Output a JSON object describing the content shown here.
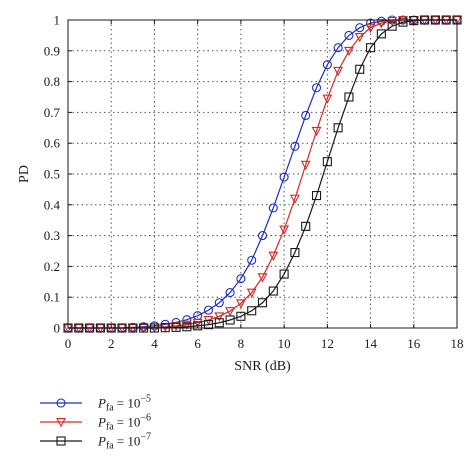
{
  "chart_data": {
    "type": "line",
    "xlabel": "SNR (dB)",
    "ylabel": "PD",
    "xlim": [
      0,
      18
    ],
    "ylim": [
      0,
      1
    ],
    "xticks": [
      "0",
      "2",
      "4",
      "6",
      "8",
      "10",
      "12",
      "14",
      "16",
      "18"
    ],
    "yticks": [
      "0",
      "0.1",
      "0.2",
      "0.3",
      "0.4",
      "0.5",
      "0.6",
      "0.7",
      "0.8",
      "0.9",
      "1"
    ],
    "grid": true,
    "legend_position": "below-left",
    "x": [
      0,
      0.5,
      1,
      1.5,
      2,
      2.5,
      3,
      3.5,
      4,
      4.5,
      5,
      5.5,
      6,
      6.5,
      7,
      7.5,
      8,
      8.5,
      9,
      9.5,
      10,
      10.5,
      11,
      11.5,
      12,
      12.5,
      13,
      13.5,
      14,
      14.5,
      15,
      15.5,
      16,
      16.5,
      17,
      17.5,
      18
    ],
    "series": [
      {
        "name": "P_fa = 10^-5",
        "legend_main": "P",
        "legend_sub": "fa",
        "legend_eq": "= 10",
        "legend_exp": "−5",
        "color": "#1f2fbf",
        "marker": "circle",
        "values": [
          0.0,
          0.0,
          0.0,
          0.0,
          0.0,
          0.0,
          0.002,
          0.004,
          0.007,
          0.012,
          0.018,
          0.027,
          0.04,
          0.058,
          0.082,
          0.115,
          0.16,
          0.22,
          0.3,
          0.39,
          0.49,
          0.59,
          0.69,
          0.78,
          0.855,
          0.91,
          0.95,
          0.975,
          0.99,
          0.996,
          1.0,
          1.0,
          1.0,
          1.0,
          1.0,
          1.0,
          1.0
        ]
      },
      {
        "name": "P_fa = 10^-6",
        "legend_main": "P",
        "legend_sub": "fa",
        "legend_eq": "= 10",
        "legend_exp": "−6",
        "color": "#d42a2a",
        "marker": "triangle-down",
        "values": [
          0.0,
          0.0,
          0.0,
          0.0,
          0.0,
          0.0,
          0.0,
          0.001,
          0.002,
          0.004,
          0.007,
          0.011,
          0.017,
          0.026,
          0.038,
          0.055,
          0.08,
          0.115,
          0.165,
          0.235,
          0.32,
          0.42,
          0.53,
          0.64,
          0.745,
          0.835,
          0.9,
          0.945,
          0.975,
          0.99,
          0.997,
          1.0,
          1.0,
          1.0,
          1.0,
          1.0,
          1.0
        ]
      },
      {
        "name": "P_fa = 10^-7",
        "legend_main": "P",
        "legend_sub": "fa",
        "legend_eq": "= 10",
        "legend_exp": "−7",
        "color": "#1a1a1a",
        "marker": "square",
        "values": [
          0.0,
          0.0,
          0.0,
          0.0,
          0.0,
          0.0,
          0.0,
          0.0,
          0.0,
          0.001,
          0.002,
          0.004,
          0.007,
          0.011,
          0.017,
          0.026,
          0.038,
          0.056,
          0.082,
          0.12,
          0.175,
          0.245,
          0.33,
          0.43,
          0.54,
          0.65,
          0.75,
          0.84,
          0.91,
          0.955,
          0.98,
          0.993,
          0.998,
          1.0,
          1.0,
          1.0,
          1.0
        ]
      }
    ]
  }
}
